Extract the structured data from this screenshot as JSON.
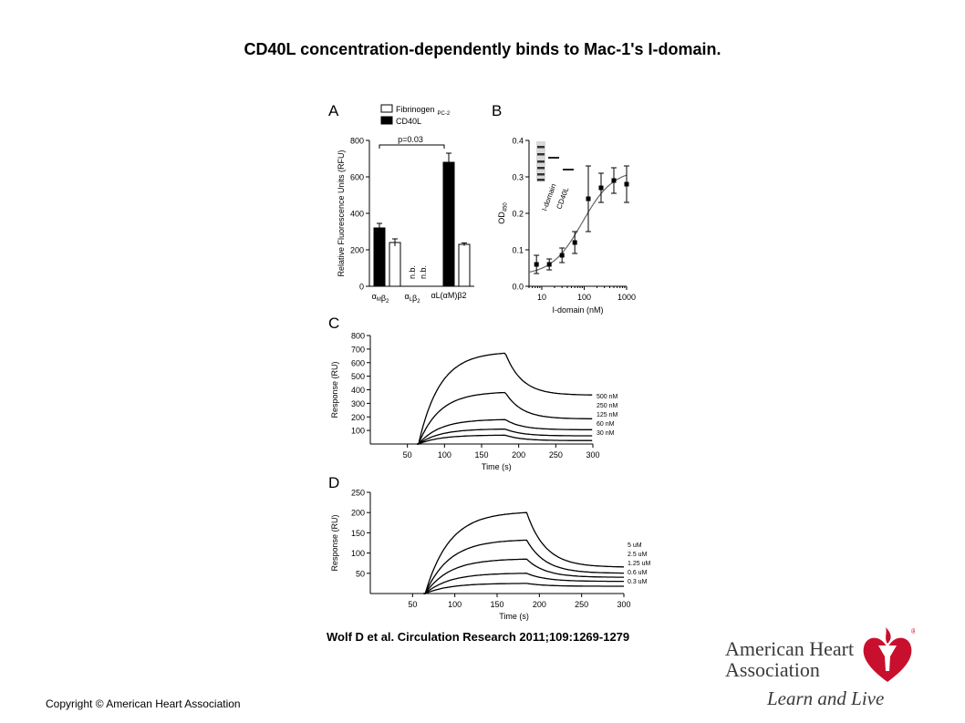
{
  "slide": {
    "title": "CD40L concentration-dependently binds to Mac-1's I-domain.",
    "citation": "Wolf D et al. Circulation Research 2011;109:1269-1279",
    "copyright": "Copyright © American Heart Association",
    "logo": {
      "line1": "American Heart",
      "line2": "Association",
      "tagline": "Learn and Live",
      "registered": "®",
      "color": "#c8102e"
    }
  },
  "chart_data": [
    {
      "panel": "A",
      "type": "bar",
      "ylabel": "Relative Fluorescence Units (RFU)",
      "ylim": [
        0,
        800
      ],
      "yticks": [
        0,
        200,
        400,
        600,
        800
      ],
      "categories": [
        "αMβ2",
        "αLβ2",
        "αL(αM)β2"
      ],
      "series": [
        {
          "name": "CD40L",
          "fill": "#000000",
          "values": [
            320,
            null,
            680
          ],
          "errors": [
            25,
            null,
            50
          ]
        },
        {
          "name": "Fibrinogen",
          "name_sub": "PC-2",
          "fill": "#ffffff",
          "values": [
            240,
            null,
            230
          ],
          "errors": [
            20,
            null,
            8
          ]
        }
      ],
      "annotations": {
        "significance": "p=0.03",
        "not_bound": [
          "n.b.",
          "n.b."
        ]
      }
    },
    {
      "panel": "B",
      "type": "scatter",
      "xlabel": "I-domain (nM)",
      "ylabel": "OD",
      "ylabel_sub": "450",
      "xscale": "log",
      "xlim": [
        5,
        1000
      ],
      "xticks": [
        10,
        100,
        1000
      ],
      "ylim": [
        0,
        0.4
      ],
      "yticks": [
        0.0,
        0.1,
        0.2,
        0.3,
        0.4
      ],
      "points": [
        {
          "x": 7.5,
          "y": 0.06,
          "err": 0.025
        },
        {
          "x": 15,
          "y": 0.06,
          "err": 0.015
        },
        {
          "x": 30,
          "y": 0.085,
          "err": 0.02
        },
        {
          "x": 60,
          "y": 0.12,
          "err": 0.03
        },
        {
          "x": 125,
          "y": 0.24,
          "err": 0.09
        },
        {
          "x": 250,
          "y": 0.27,
          "err": 0.04
        },
        {
          "x": 500,
          "y": 0.29,
          "err": 0.035
        },
        {
          "x": 1000,
          "y": 0.28,
          "err": 0.05
        }
      ],
      "fit": {
        "bottom": 0.03,
        "top": 0.32,
        "ec50": 90,
        "hill": 1.2
      },
      "inset_labels": [
        "I-domain",
        "CD40L"
      ]
    },
    {
      "panel": "C",
      "type": "line",
      "xlabel": "Time (s)",
      "ylabel": "Response (RU)",
      "xlim": [
        0,
        300
      ],
      "xticks": [
        50,
        100,
        150,
        200,
        250,
        300
      ],
      "ylim": [
        0,
        800
      ],
      "yticks": [
        100,
        200,
        300,
        400,
        500,
        600,
        700,
        800
      ],
      "inject_start": 65,
      "inject_end": 182,
      "series": [
        {
          "name": "500 nM",
          "peak": 670,
          "end": 360
        },
        {
          "name": "250 nM",
          "peak": 380,
          "end": 185
        },
        {
          "name": "125 nM",
          "peak": 180,
          "end": 105
        },
        {
          "name": "60 nM",
          "peak": 110,
          "end": 60
        },
        {
          "name": "30 nM",
          "peak": 65,
          "end": 25
        }
      ]
    },
    {
      "panel": "D",
      "type": "line",
      "xlabel": "Time (s)",
      "ylabel": "Response (RU)",
      "xlim": [
        0,
        300
      ],
      "xticks": [
        50,
        100,
        150,
        200,
        250,
        300
      ],
      "ylim": [
        0,
        250
      ],
      "yticks": [
        50,
        100,
        150,
        200,
        250
      ],
      "inject_start": 65,
      "inject_end": 185,
      "series": [
        {
          "name": "5 uM",
          "peak": 200,
          "end": 65
        },
        {
          "name": "2.5 uM",
          "peak": 132,
          "end": 50
        },
        {
          "name": "1.25 uM",
          "peak": 85,
          "end": 40
        },
        {
          "name": "0.6 uM",
          "peak": 50,
          "end": 30
        },
        {
          "name": "0.3 uM",
          "peak": 25,
          "end": 18
        }
      ]
    }
  ]
}
